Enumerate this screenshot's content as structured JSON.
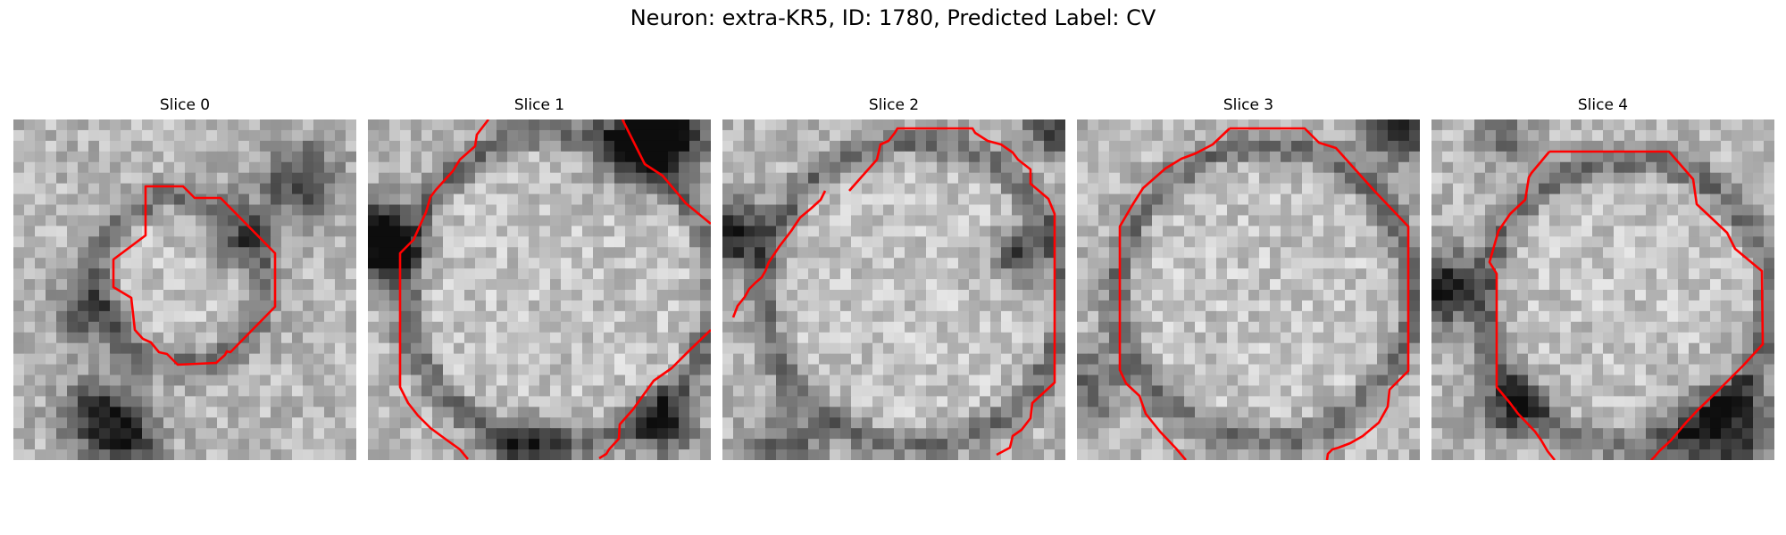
{
  "figure": {
    "title": "Neuron: extra-KR5, ID: 1780, Predicted Label: CV",
    "contour_color": "#ff0000"
  },
  "panels": [
    {
      "title": "Slice 0"
    },
    {
      "title": "Slice 1"
    },
    {
      "title": "Slice 2"
    },
    {
      "title": "Slice 3"
    },
    {
      "title": "Slice 4"
    }
  ]
}
